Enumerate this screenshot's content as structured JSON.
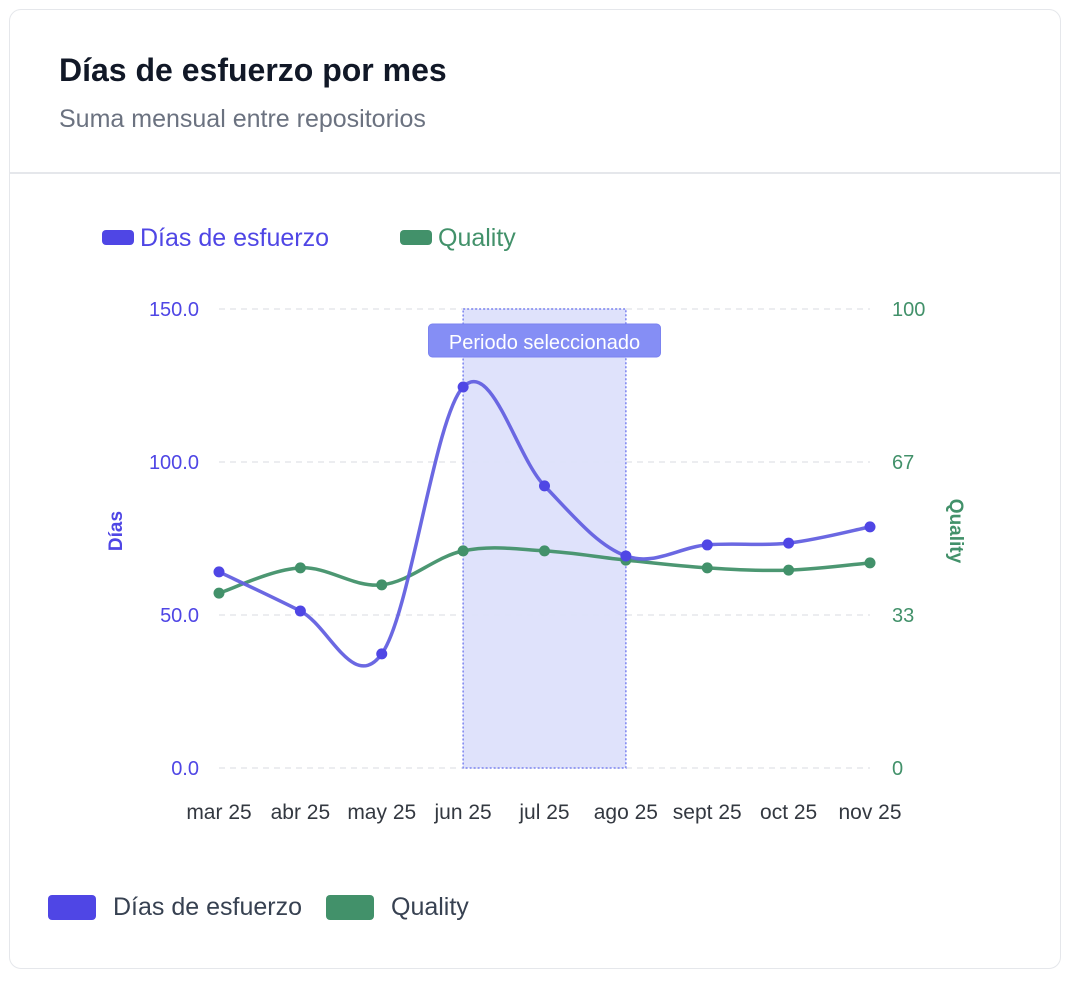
{
  "card": {
    "title": "Días de esfuerzo por mes",
    "subtitle": "Suma mensual entre repositorios"
  },
  "colors": {
    "dias": "#4f46e5",
    "dias_line": "#6360e0",
    "quality": "#42916a",
    "selection_fill": "#dde0fb",
    "selection_border": "#7b83f0",
    "selection_label_bg": "#858ef5",
    "grid": "#e5e7eb"
  },
  "legend_top": [
    {
      "label": "Días de esfuerzo",
      "color": "#4f46e5"
    },
    {
      "label": "Quality",
      "color": "#42916a"
    }
  ],
  "legend_bottom": [
    {
      "label": "Días de esfuerzo",
      "color": "#4f46e5"
    },
    {
      "label": "Quality",
      "color": "#42916a"
    }
  ],
  "annotation": {
    "label": "Periodo seleccionado",
    "from": "jun 25",
    "to": "ago 25"
  },
  "chart_data": {
    "type": "line",
    "title": "Días de esfuerzo por mes",
    "subtitle": "Suma mensual entre repositorios",
    "categories": [
      "mar 25",
      "abr 25",
      "may 25",
      "jun 25",
      "jul 25",
      "ago 25",
      "sept 25",
      "oct 25",
      "nov 25"
    ],
    "series": [
      {
        "name": "Días de esfuerzo",
        "axis": "left",
        "values": [
          64.1,
          51.3,
          37.3,
          124.5,
          92.2,
          69.3,
          72.9,
          73.5,
          78.8
        ]
      },
      {
        "name": "Quality",
        "axis": "right",
        "values": [
          38.1,
          43.6,
          39.9,
          47.3,
          47.3,
          45.3,
          43.6,
          43.1,
          44.7
        ]
      }
    ],
    "xlabel": "",
    "ylabel": "Días",
    "y2label": "Quality",
    "ylim": [
      0,
      150
    ],
    "y2lim": [
      0,
      100
    ],
    "yticks": [
      "0.0",
      "50.0",
      "100.0",
      "150.0"
    ],
    "y2ticks": [
      "0",
      "33",
      "67",
      "100"
    ],
    "grid": true,
    "legend_position": "top-left and bottom",
    "annotations": [
      {
        "type": "box",
        "label": "Periodo seleccionado",
        "x_from": "jun 25",
        "x_to": "ago 25"
      }
    ]
  }
}
